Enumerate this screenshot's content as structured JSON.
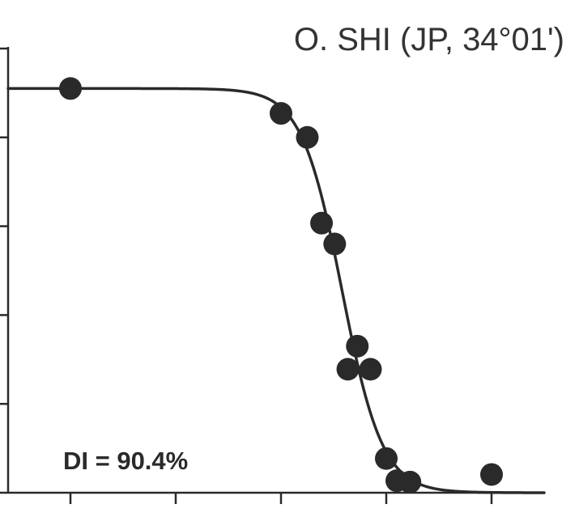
{
  "chart_data": {
    "type": "scatter",
    "title": "O. SHI (JP, 34°01')",
    "xlabel": "",
    "ylabel": "",
    "annotation": "DI = 90.4%",
    "xlim": [
      0,
      10
    ],
    "ylim": [
      0,
      100
    ],
    "x_ticks": [
      1,
      3,
      5,
      7,
      9
    ],
    "y_ticks": [
      0,
      20,
      40,
      60,
      80,
      100
    ],
    "grid": false,
    "colors": {
      "points": "#2a2a2a",
      "curve": "#2a2a2a",
      "axis": "#2a2a2a",
      "text": "#333333"
    },
    "points": [
      {
        "x": 1.0,
        "y": 91.0
      },
      {
        "x": 5.0,
        "y": 85.4
      },
      {
        "x": 5.5,
        "y": 80.0
      },
      {
        "x": 5.77,
        "y": 60.7
      },
      {
        "x": 6.02,
        "y": 56.0
      },
      {
        "x": 6.45,
        "y": 33.0
      },
      {
        "x": 6.27,
        "y": 27.8
      },
      {
        "x": 6.7,
        "y": 27.8
      },
      {
        "x": 7.0,
        "y": 7.7
      },
      {
        "x": 7.2,
        "y": 2.7
      },
      {
        "x": 7.45,
        "y": 2.4
      },
      {
        "x": 9.0,
        "y": 4.1
      }
    ],
    "fit_curve": {
      "model": "logistic",
      "top": 91.0,
      "bottom": 0.0,
      "midpoint": 6.16,
      "slope": 2.6,
      "x_range": [
        0,
        10
      ]
    }
  }
}
